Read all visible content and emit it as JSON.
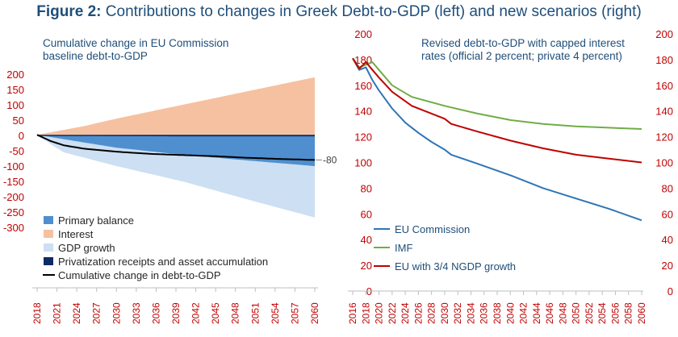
{
  "figure": {
    "label": "Figure 2:",
    "title": "Contributions to changes in Greek Debt-to-GDP (left) and new scenarios (right)"
  },
  "chart_data": [
    {
      "type": "area",
      "title_lines": [
        "Cumulative change in EU Commission",
        "baseline debt-to-GDP"
      ],
      "ylim": [
        -300,
        200
      ],
      "yticks": [
        -300,
        -250,
        -200,
        -150,
        -100,
        -50,
        0,
        50,
        100,
        150,
        200
      ],
      "xlim": [
        2018,
        2060
      ],
      "xticks": [
        2018,
        2021,
        2024,
        2027,
        2030,
        2033,
        2036,
        2039,
        2042,
        2045,
        2048,
        2051,
        2054,
        2057,
        2060
      ],
      "end_label": "-80",
      "series": [
        {
          "name": "Primary balance",
          "kind": "area",
          "color": "#4f8fcf",
          "points": [
            [
              2018,
              2
            ],
            [
              2030,
              -40
            ],
            [
              2040,
              -63
            ],
            [
              2050,
              -82
            ],
            [
              2060,
              -100
            ]
          ]
        },
        {
          "name": "Interest",
          "kind": "area",
          "color": "#f6c1a0",
          "points": [
            [
              2018,
              2
            ],
            [
              2025,
              30
            ],
            [
              2030,
              55
            ],
            [
              2040,
              100
            ],
            [
              2050,
              145
            ],
            [
              2060,
              190
            ]
          ]
        },
        {
          "name": "GDP growth",
          "kind": "area",
          "color": "#cddff2",
          "points": [
            [
              2018,
              0
            ],
            [
              2022,
              -55
            ],
            [
              2030,
              -100
            ],
            [
              2040,
              -150
            ],
            [
              2050,
              -210
            ],
            [
              2060,
              -268
            ]
          ]
        },
        {
          "name": "Privatization receipts and asset accumulation",
          "kind": "area",
          "color": "#0d2a66",
          "points": [
            [
              2018,
              0
            ],
            [
              2030,
              -2
            ],
            [
              2040,
              -3
            ],
            [
              2050,
              -3
            ],
            [
              2060,
              -3
            ]
          ]
        },
        {
          "name": "Cumulative change in debt-to-GDP",
          "kind": "line",
          "color": "#000000",
          "points": [
            [
              2018,
              2
            ],
            [
              2020,
              -18
            ],
            [
              2022,
              -32
            ],
            [
              2025,
              -43
            ],
            [
              2030,
              -53
            ],
            [
              2035,
              -60
            ],
            [
              2040,
              -64
            ],
            [
              2045,
              -68
            ],
            [
              2050,
              -73
            ],
            [
              2055,
              -77
            ],
            [
              2060,
              -80
            ]
          ]
        }
      ]
    },
    {
      "type": "line",
      "title_lines": [
        "Revised debt-to-GDP with capped interest",
        "rates (official 2 percent; private 4 percent)"
      ],
      "ylim": [
        0,
        200
      ],
      "yticks": [
        0,
        20,
        40,
        60,
        80,
        100,
        120,
        140,
        160,
        180,
        200
      ],
      "xlim": [
        2016,
        2060
      ],
      "xticks": [
        2016,
        2018,
        2020,
        2022,
        2024,
        2026,
        2028,
        2030,
        2032,
        2034,
        2036,
        2038,
        2040,
        2042,
        2044,
        2046,
        2048,
        2050,
        2052,
        2054,
        2056,
        2058,
        2060
      ],
      "series": [
        {
          "name": "EU Commission",
          "color": "#2e75b6",
          "points": [
            [
              2016,
              181
            ],
            [
              2017,
              172
            ],
            [
              2018,
              174
            ],
            [
              2019,
              164
            ],
            [
              2020,
              156
            ],
            [
              2022,
              142
            ],
            [
              2024,
              131
            ],
            [
              2026,
              123
            ],
            [
              2028,
              116
            ],
            [
              2030,
              110
            ],
            [
              2031,
              106
            ],
            [
              2035,
              99
            ],
            [
              2040,
              90
            ],
            [
              2045,
              80
            ],
            [
              2050,
              72
            ],
            [
              2055,
              64
            ],
            [
              2060,
              55
            ]
          ]
        },
        {
          "name": "IMF",
          "color": "#70ad47",
          "points": [
            [
              2016,
              181
            ],
            [
              2017,
              174
            ],
            [
              2018,
              176
            ],
            [
              2019,
              178
            ],
            [
              2020,
              172
            ],
            [
              2022,
              160
            ],
            [
              2025,
              151
            ],
            [
              2030,
              144
            ],
            [
              2035,
              138
            ],
            [
              2040,
              133
            ],
            [
              2045,
              130
            ],
            [
              2050,
              128
            ],
            [
              2055,
              127
            ],
            [
              2060,
              126
            ]
          ]
        },
        {
          "name": "EU with 3/4 NGDP growth",
          "color": "#c00000",
          "points": [
            [
              2016,
              181
            ],
            [
              2017,
              173
            ],
            [
              2018,
              178
            ],
            [
              2019,
              172
            ],
            [
              2020,
              166
            ],
            [
              2022,
              155
            ],
            [
              2025,
              144
            ],
            [
              2030,
              134
            ],
            [
              2031,
              130
            ],
            [
              2035,
              124
            ],
            [
              2040,
              117
            ],
            [
              2045,
              111
            ],
            [
              2050,
              106
            ],
            [
              2055,
              103
            ],
            [
              2060,
              100
            ]
          ]
        }
      ]
    }
  ]
}
